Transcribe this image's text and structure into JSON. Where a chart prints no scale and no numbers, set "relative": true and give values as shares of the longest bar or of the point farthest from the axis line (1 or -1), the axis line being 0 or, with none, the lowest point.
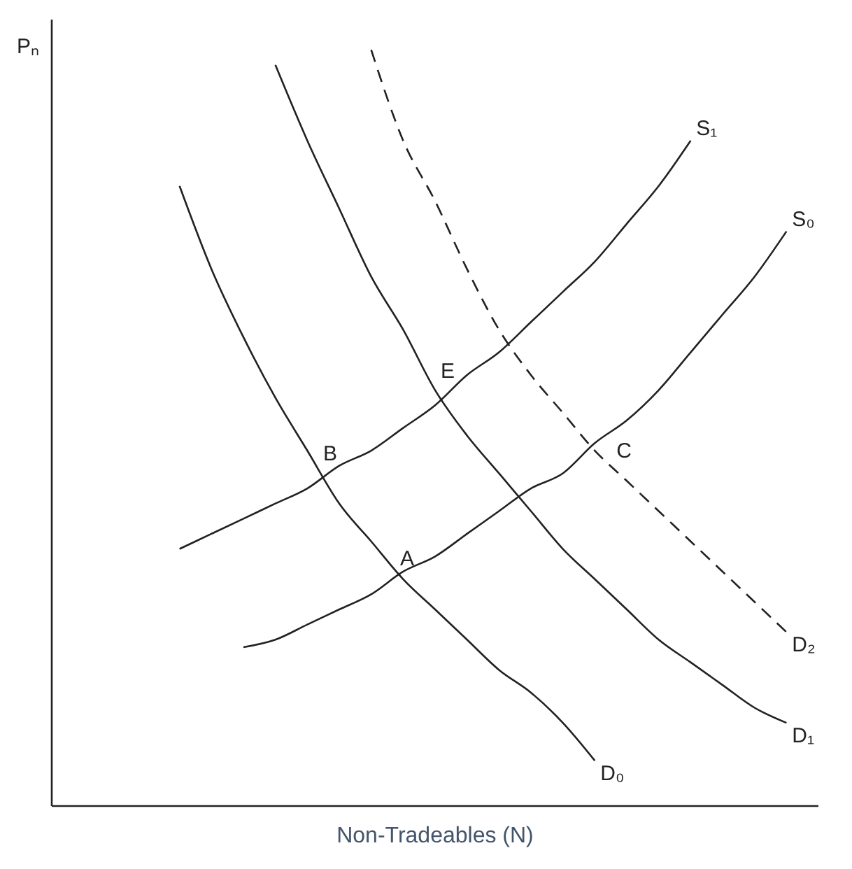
{
  "chart_data": {
    "type": "line",
    "relative": true,
    "xlabel": "Non-Tradeables (N)",
    "ylabel": "Pₙ",
    "legend": false,
    "grid": false,
    "marker": "none",
    "categories": [
      null,
      null,
      null,
      null,
      null,
      null,
      null,
      null,
      null,
      null,
      null,
      null,
      null,
      null,
      null,
      null,
      null,
      null,
      null,
      null,
      null,
      null,
      null,
      null,
      null
    ],
    "series": [
      {
        "name": "D₀",
        "color": "#222222",
        "line_style": "solid",
        "values": [
          null,
          null,
          null,
          null,
          0.82,
          0.71,
          0.62,
          0.54,
          0.47,
          0.4,
          0.35,
          0.3,
          0.26,
          0.22,
          0.18,
          0.15,
          0.11,
          0.06,
          null,
          null,
          null,
          null,
          null,
          null,
          null
        ]
      },
      {
        "name": "D₁",
        "color": "#222222",
        "line_style": "solid",
        "values": [
          null,
          null,
          null,
          null,
          null,
          null,
          null,
          0.98,
          0.88,
          0.79,
          0.7,
          0.63,
          0.55,
          0.49,
          0.44,
          0.39,
          0.34,
          0.3,
          0.26,
          0.22,
          0.19,
          0.16,
          0.13,
          0.11,
          null
        ]
      },
      {
        "name": "D₂",
        "color": "#222222",
        "line_style": "dashed",
        "values": [
          null,
          null,
          null,
          null,
          null,
          null,
          null,
          null,
          null,
          null,
          1,
          0.88,
          0.8,
          0.71,
          0.63,
          0.57,
          0.52,
          0.47,
          0.43,
          0.39,
          0.35,
          0.31,
          0.27,
          0.23,
          null
        ]
      },
      {
        "name": "S₁",
        "color": "#222222",
        "line_style": "solid",
        "values": [
          null,
          null,
          null,
          null,
          0.34,
          0.36,
          0.38,
          0.4,
          0.42,
          0.45,
          0.47,
          0.5,
          0.53,
          0.57,
          0.6,
          0.64,
          0.68,
          0.72,
          0.77,
          0.82,
          0.88,
          null,
          null,
          null,
          null
        ]
      },
      {
        "name": "S₀",
        "color": "#222222",
        "line_style": "solid",
        "values": [
          null,
          null,
          null,
          null,
          null,
          null,
          0.21,
          0.22,
          0.24,
          0.26,
          0.28,
          0.31,
          0.33,
          0.36,
          0.39,
          0.42,
          0.44,
          0.48,
          0.51,
          0.55,
          0.6,
          0.65,
          0.7,
          0.76,
          null
        ]
      }
    ],
    "annotations": [
      "E",
      "B",
      "A",
      "C"
    ]
  }
}
